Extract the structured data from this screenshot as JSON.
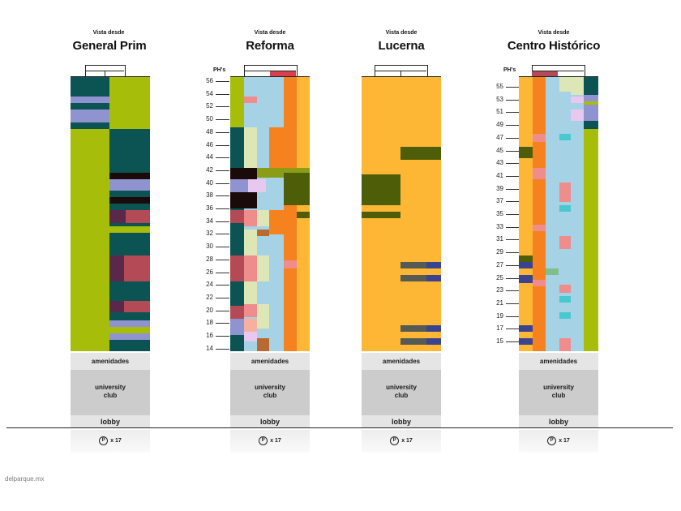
{
  "colors": {
    "lime": "#a6bd0a",
    "teal": "#0c5353",
    "periwinkle": "#8f93cf",
    "black": "#1a0a0a",
    "maroon": "#5a2848",
    "red": "#b34a55",
    "orange": "#f5821f",
    "amber": "#fdb735",
    "lightblue": "#a6d2e6",
    "cream": "#dde6b6",
    "pink": "#ef8c8c",
    "olive": "#4e5e08",
    "olive2": "#8a9d14",
    "lavender": "#e8c8ee",
    "brown": "#b86a30",
    "darkgray": "#555a55",
    "navy": "#3a4390",
    "cyan": "#49c8d0",
    "salmon": "#f5b0a0",
    "greenstripe": "#7fbf8a",
    "base_light": "#e5e5e5",
    "base_mid": "#cccccc",
    "rooftop_red": "#d84050"
  },
  "columns": [
    {
      "id": "general-prim",
      "prefix": "Vista desde",
      "title": "General Prim",
      "has_ph": false
    },
    {
      "id": "reforma",
      "prefix": "Vista desde",
      "title": "Reforma",
      "has_ph": true,
      "ph_label": "PH's",
      "ticks": [
        "56",
        "54",
        "52",
        "50",
        "48",
        "46",
        "44",
        "42",
        "40",
        "38",
        "36",
        "34",
        "32",
        "30",
        "28",
        "26",
        "24",
        "22",
        "20",
        "18",
        "16",
        "14"
      ]
    },
    {
      "id": "lucerna",
      "prefix": "Vista desde",
      "title": "Lucerna",
      "has_ph": false
    },
    {
      "id": "centro-historico",
      "prefix": "Vista desde",
      "title": "Centro Histórico",
      "has_ph": true,
      "ph_label": "PH's",
      "ticks": [
        "55",
        "53",
        "51",
        "49",
        "47",
        "45",
        "43",
        "41",
        "39",
        "37",
        "35",
        "33",
        "31",
        "29",
        "27",
        "25",
        "23",
        "21",
        "19",
        "17",
        "15"
      ]
    }
  ],
  "base_labels": {
    "amenities": "amenidades",
    "club_line1": "university",
    "club_line2": "club",
    "lobby": "lobby",
    "parking_icon": "P",
    "parking_count": "x 17"
  },
  "footer": "delparque.mx"
}
